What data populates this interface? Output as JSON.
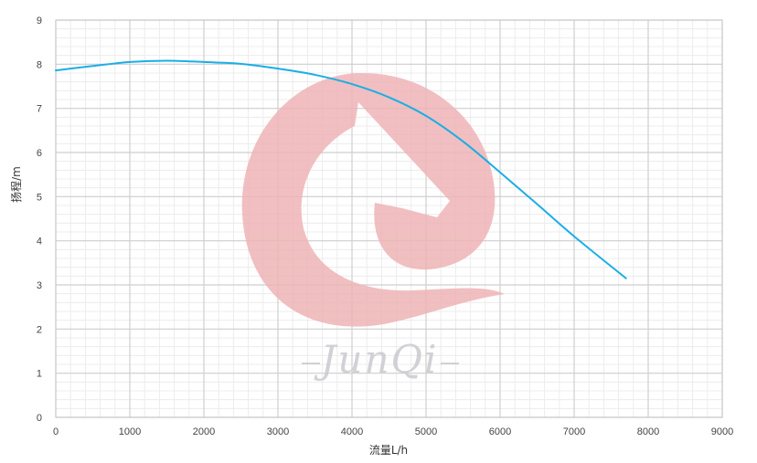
{
  "chart_data": {
    "type": "line",
    "title": "",
    "xlabel": "流量L/h",
    "ylabel": "扬程/m",
    "xlim": [
      0,
      9000
    ],
    "ylim": [
      0,
      9
    ],
    "x_ticks": [
      0,
      1000,
      2000,
      3000,
      4000,
      5000,
      6000,
      7000,
      8000,
      9000
    ],
    "y_ticks": [
      0,
      1,
      2,
      3,
      4,
      5,
      6,
      7,
      8,
      9
    ],
    "grid": true,
    "series": [
      {
        "color": "#1aaee6",
        "x": [
          0,
          500,
          1000,
          1500,
          2000,
          2500,
          3000,
          3500,
          4000,
          4500,
          5000,
          5500,
          6000,
          6500,
          7000,
          7700
        ],
        "y": [
          7.86,
          7.96,
          8.05,
          8.08,
          8.05,
          8.01,
          7.9,
          7.76,
          7.55,
          7.25,
          6.83,
          6.25,
          5.55,
          4.83,
          4.1,
          3.15
        ]
      }
    ]
  },
  "watermark": {
    "text": "JunQi",
    "color": "#e8a3a6"
  }
}
